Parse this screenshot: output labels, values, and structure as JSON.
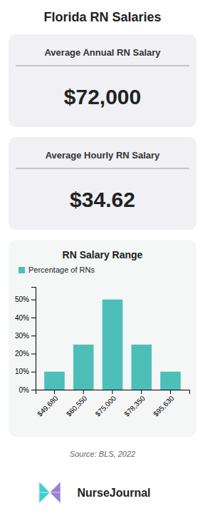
{
  "chart_data": {
    "type": "bar",
    "title": "Florida RN Salaries",
    "annotations": [
      "Average Annual RN Salary",
      "$72,000",
      "Average Hourly RN Salary",
      "$34.62",
      "RN Salary Range",
      "Source: BLS, 2022",
      "NurseJournal"
    ],
    "categories": [
      "$49,680",
      "$60,550",
      "$75,000",
      "$78,350",
      "$95,630"
    ],
    "series": [
      {
        "name": "Percentage of RNs",
        "color": "#4dbfb8",
        "values": [
          10,
          25,
          50,
          25,
          10
        ]
      }
    ],
    "ylim": [
      0,
      57
    ],
    "yticks": [
      {
        "value": 0,
        "label": "0%"
      },
      {
        "value": 10,
        "label": "10%"
      },
      {
        "value": 20,
        "label": "20%"
      },
      {
        "value": 30,
        "label": "30%"
      },
      {
        "value": 40,
        "label": "40%"
      },
      {
        "value": 50,
        "label": "50%"
      }
    ],
    "grid": false,
    "legend": "upper left"
  }
}
